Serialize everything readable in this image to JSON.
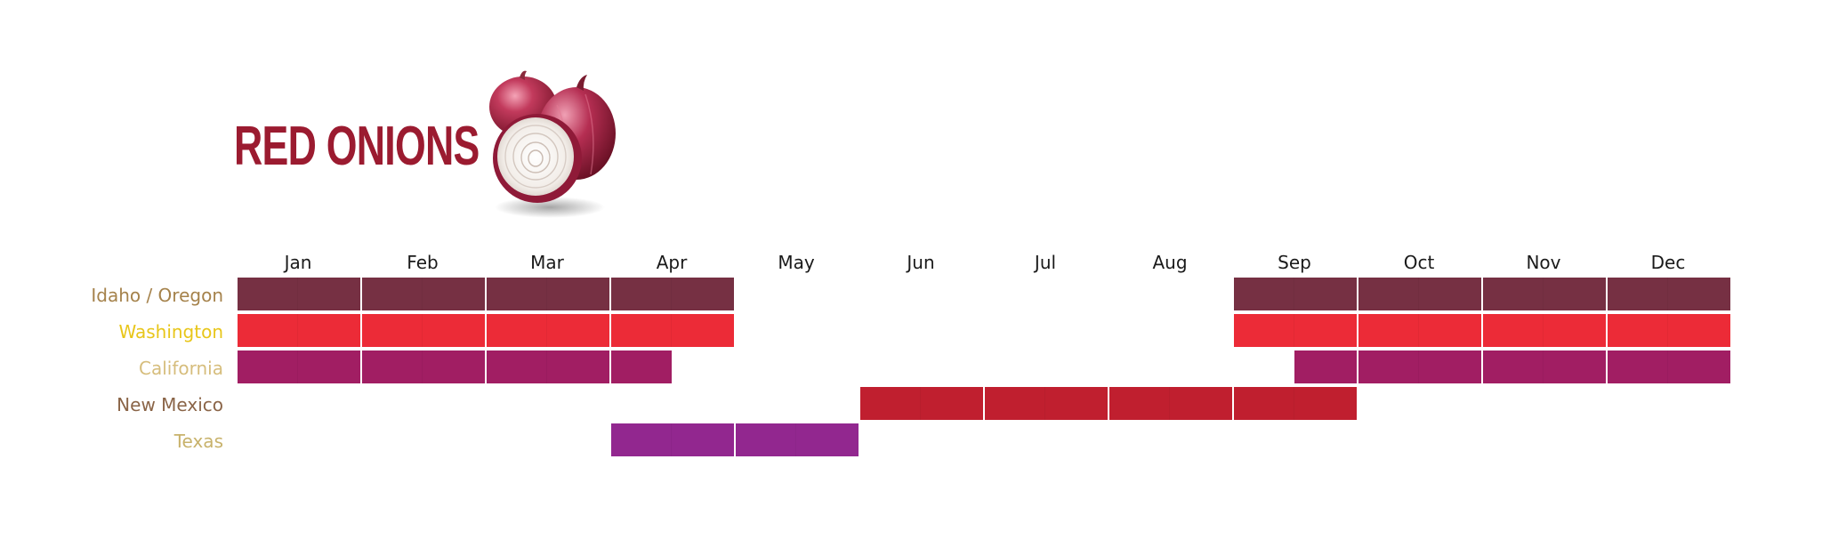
{
  "title": "RED ONIONS",
  "image": {
    "icon": "red-onion-illustration"
  },
  "chart_data": {
    "type": "table",
    "subtype": "seasonal-availability",
    "months": [
      "Jan",
      "Feb",
      "Mar",
      "Apr",
      "May",
      "Jun",
      "Jul",
      "Aug",
      "Sep",
      "Oct",
      "Nov",
      "Dec"
    ],
    "rows": [
      {
        "label": "Idaho / Oregon",
        "label_color": "#a5824b",
        "bar_color": "#763043",
        "half_months": [
          1,
          1,
          1,
          1,
          1,
          1,
          1,
          1,
          0,
          0,
          0,
          0,
          0,
          0,
          0,
          0,
          1,
          1,
          1,
          1,
          1,
          1,
          1,
          1
        ]
      },
      {
        "label": "Washington",
        "label_color": "#e8c61a",
        "bar_color": "#ec2b37",
        "half_months": [
          1,
          1,
          1,
          1,
          1,
          1,
          1,
          1,
          0,
          0,
          0,
          0,
          0,
          0,
          0,
          0,
          1,
          1,
          1,
          1,
          1,
          1,
          1,
          1
        ]
      },
      {
        "label": "California",
        "label_color": "#d6bd7c",
        "bar_color": "#a11e63",
        "half_months": [
          1,
          1,
          1,
          1,
          1,
          1,
          1,
          0,
          0,
          0,
          0,
          0,
          0,
          0,
          0,
          0,
          0,
          1,
          1,
          1,
          1,
          1,
          1,
          1
        ]
      },
      {
        "label": "New Mexico",
        "label_color": "#8a6447",
        "bar_color": "#c01f2f",
        "half_months": [
          0,
          0,
          0,
          0,
          0,
          0,
          0,
          0,
          0,
          0,
          1,
          1,
          1,
          1,
          1,
          1,
          1,
          1,
          0,
          0,
          0,
          0,
          0,
          0
        ]
      },
      {
        "label": "Texas",
        "label_color": "#c8b26b",
        "bar_color": "#92278f",
        "half_months": [
          0,
          0,
          0,
          0,
          0,
          0,
          1,
          1,
          1,
          1,
          0,
          0,
          0,
          0,
          0,
          0,
          0,
          0,
          0,
          0,
          0,
          0,
          0,
          0
        ]
      }
    ]
  }
}
